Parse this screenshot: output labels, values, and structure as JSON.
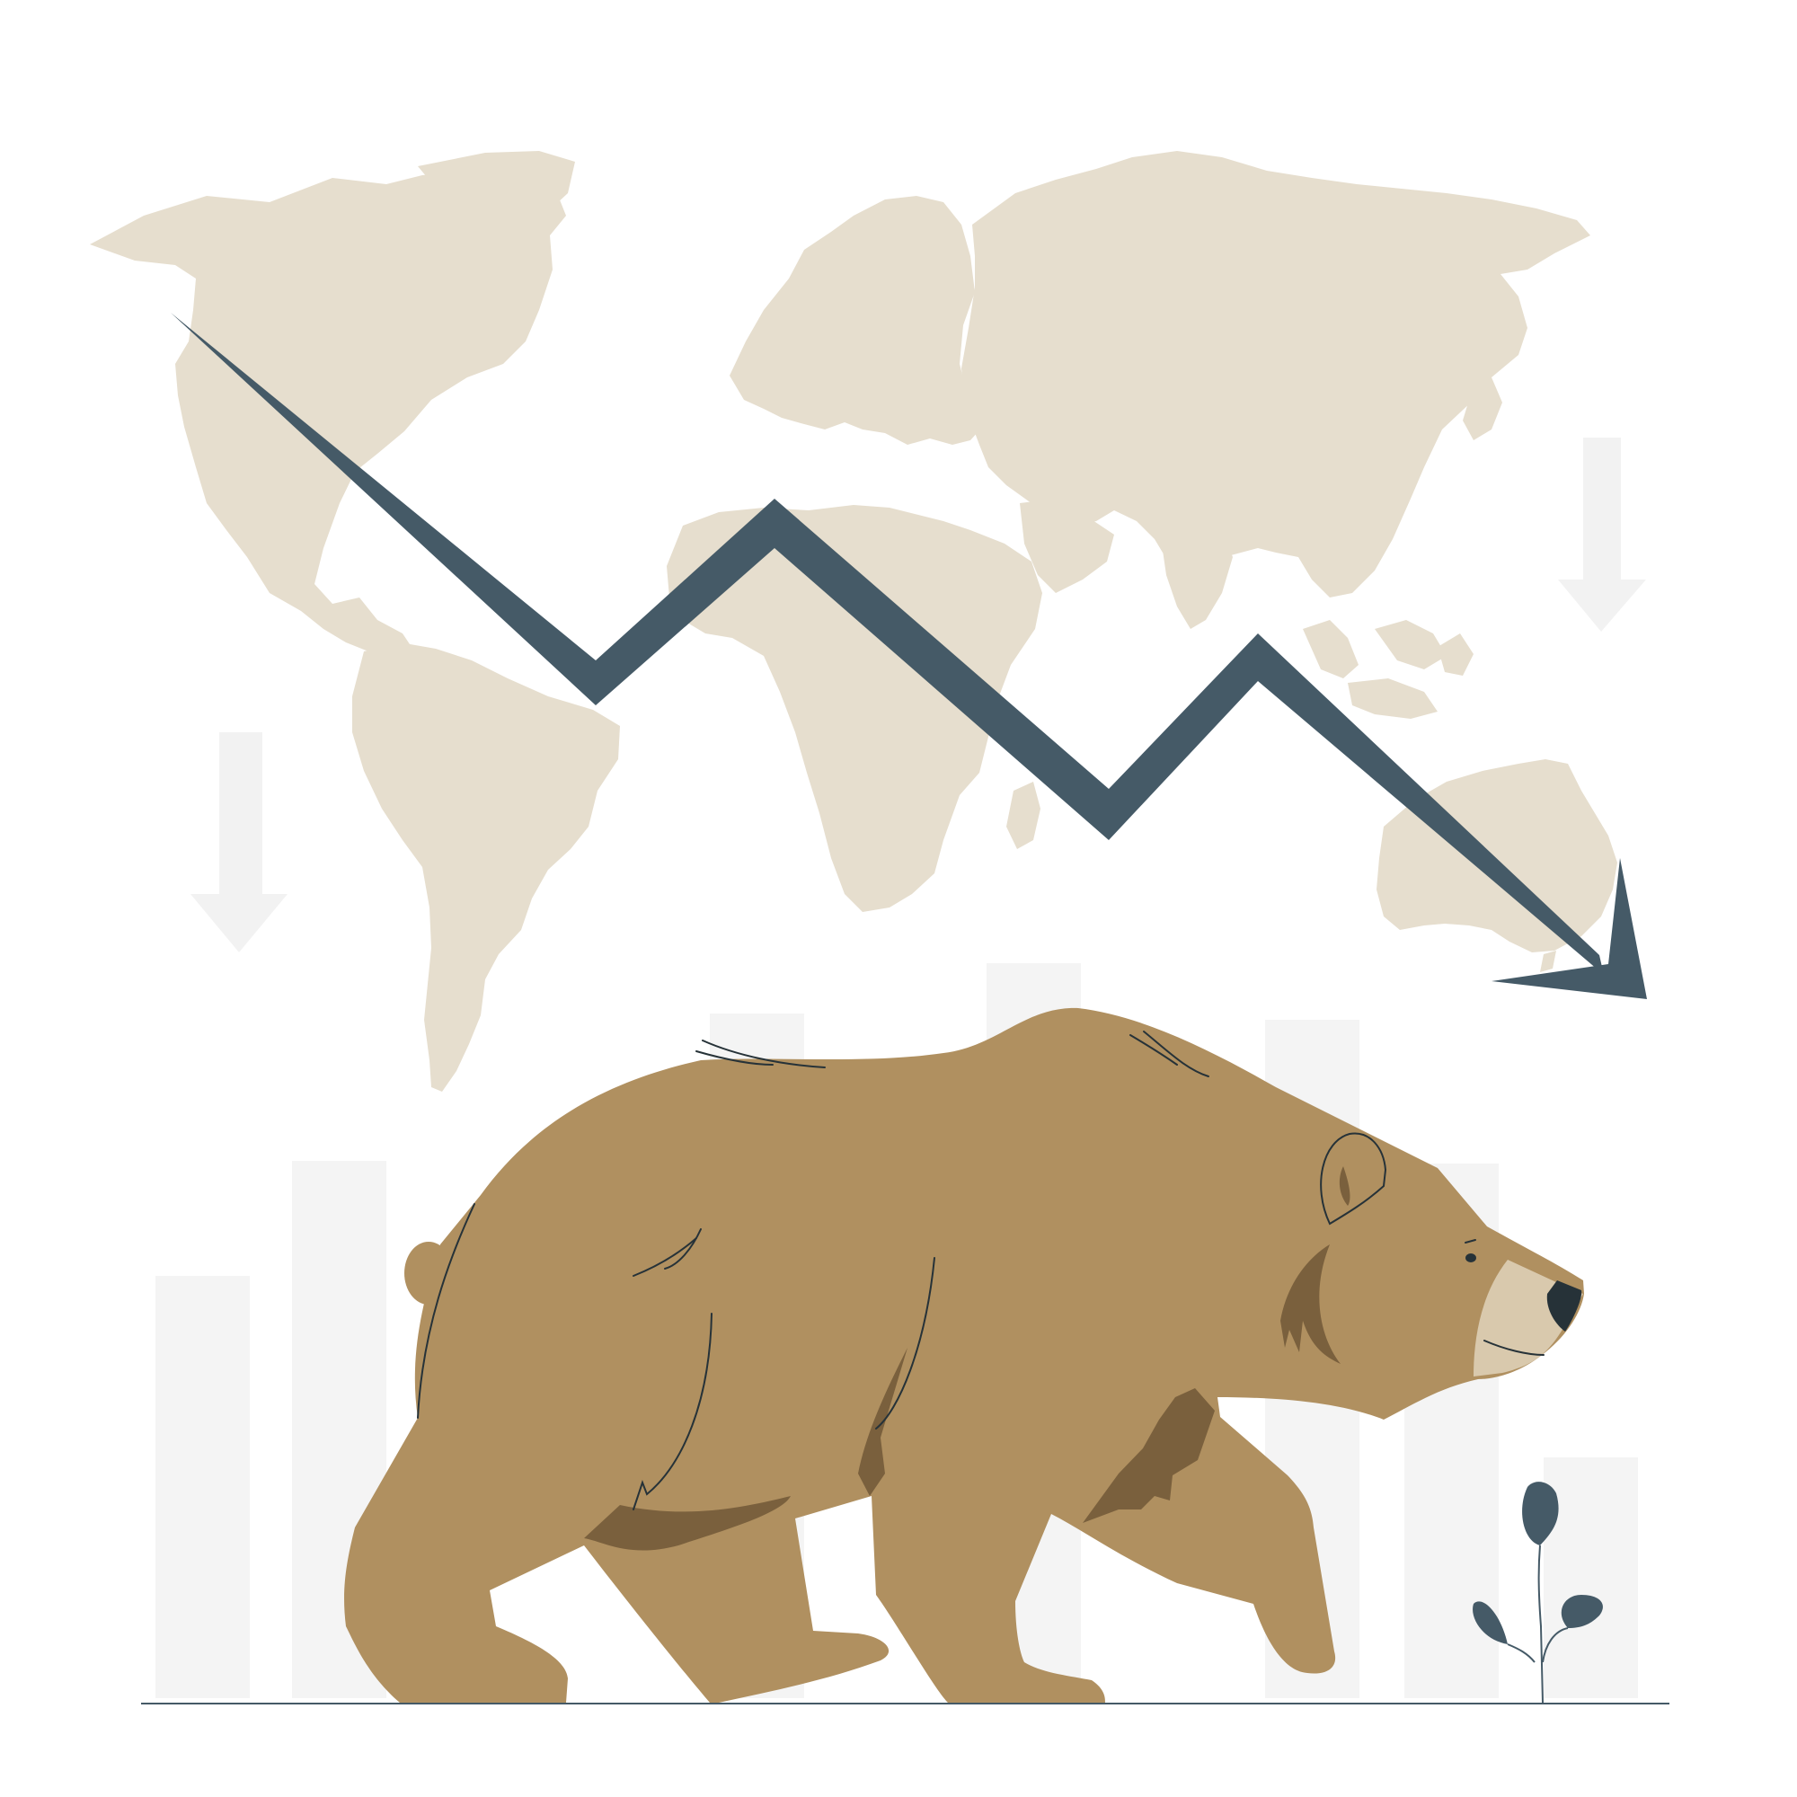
{
  "illustration": {
    "subject": "bear-market",
    "colors": {
      "background": "#ffffff",
      "map": "#e6dece",
      "trend_arrow": "#455a67",
      "bear_body": "#b09060",
      "bear_shadow": "#7a603d",
      "bear_muzzle": "#d9c9ad",
      "bear_nose": "#263238",
      "outline": "#263238",
      "bar": "#f4f4f4",
      "bg_arrow": "#f2f2f2",
      "plant": "#455a67",
      "ground": "#455a67"
    },
    "trend": {
      "direction": "down"
    }
  }
}
